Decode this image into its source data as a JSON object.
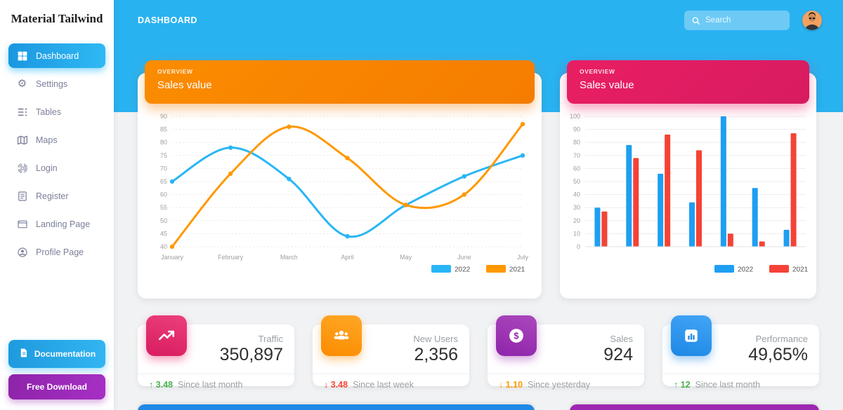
{
  "colors": {
    "topbar_blue": "#29b2f0",
    "active_item_blue": "#2fb9f4",
    "orange_header": "#fb8c00",
    "pink_header": "#e91e63",
    "purple": "#9c27b0",
    "line_blue": "#29b6f6",
    "line_orange": "#ff9800",
    "bar_blue": "#1e9ff2",
    "bar_red": "#f44336",
    "green_delta": "#4caf50",
    "red_delta": "#f44336",
    "orange_delta": "#ff9800",
    "background": "#f1f2f4"
  },
  "sidebar": {
    "brand": "Material Tailwind",
    "items": [
      {
        "label": "Dashboard",
        "icon": "dashboard-icon",
        "active": true
      },
      {
        "label": "Settings",
        "icon": "gear-icon",
        "active": false
      },
      {
        "label": "Tables",
        "icon": "table-list-icon",
        "active": false
      },
      {
        "label": "Maps",
        "icon": "map-icon",
        "active": false
      },
      {
        "label": "Login",
        "icon": "fingerprint-icon",
        "active": false
      },
      {
        "label": "Register",
        "icon": "clipboard-list-icon",
        "active": false
      },
      {
        "label": "Landing Page",
        "icon": "browser-window-icon",
        "active": false
      },
      {
        "label": "Profile Page",
        "icon": "person-circle-icon",
        "active": false
      }
    ],
    "footer_buttons": [
      {
        "label": "Documentation",
        "icon": "document-icon",
        "color": "#29a5e8"
      },
      {
        "label": "Free Download",
        "color": "#9c27b0"
      }
    ]
  },
  "topbar": {
    "title": "DASHBOARD",
    "search_placeholder": "Search"
  },
  "charts": {
    "line": {
      "overline": "OVERVIEW",
      "title": "Sales value"
    },
    "bar": {
      "overline": "OVERVIEW",
      "title": "Sales value"
    }
  },
  "chart_data": [
    {
      "type": "line",
      "title": "Sales value",
      "categories": [
        "January",
        "February",
        "March",
        "April",
        "May",
        "June",
        "July"
      ],
      "series": [
        {
          "name": "2022",
          "color": "#29b6f6",
          "values": [
            65,
            78,
            66,
            44,
            56,
            67,
            75
          ]
        },
        {
          "name": "2021",
          "color": "#ff9800",
          "values": [
            40,
            68,
            86,
            74,
            56,
            60,
            87
          ]
        }
      ],
      "ylim": [
        40,
        90
      ],
      "ytick_step": 5,
      "grid": "dotted-horizontal",
      "legend_position": "bottom-right"
    },
    {
      "type": "bar",
      "title": "Sales value",
      "categories": [
        "",
        "",
        "",
        "",
        "",
        "",
        ""
      ],
      "series": [
        {
          "name": "2022",
          "color": "#1e9ff2",
          "values": [
            30,
            78,
            56,
            34,
            100,
            45,
            13
          ]
        },
        {
          "name": "2021",
          "color": "#f44336",
          "values": [
            27,
            68,
            86,
            74,
            10,
            4,
            87
          ]
        }
      ],
      "ylim": [
        0,
        100
      ],
      "ytick_step": 10,
      "grid": "solid-horizontal",
      "legend_position": "bottom-right"
    }
  ],
  "stats": [
    {
      "label": "Traffic",
      "value": "350,897",
      "icon": "trending-up-icon",
      "icon_color": "#e91e63",
      "delta": "↑ 3.48",
      "delta_color": "#4caf50",
      "period": "Since last month"
    },
    {
      "label": "New Users",
      "value": "2,356",
      "icon": "users-icon",
      "icon_color": "#fb8c00",
      "delta": "↓ 3.48",
      "delta_color": "#f44336",
      "period": "Since last week"
    },
    {
      "label": "Sales",
      "value": "924",
      "icon": "dollar-icon",
      "icon_color": "#9c27b0",
      "delta": "↓ 1.10",
      "delta_color": "#ff9800",
      "period": "Since yesterday"
    },
    {
      "label": "Performance",
      "value": "49,65%",
      "icon": "bar-chart-icon",
      "icon_color": "#1e88e5",
      "delta": "↑ 12",
      "delta_color": "#4caf50",
      "period": "Since last month"
    }
  ],
  "peek_cards": [
    {
      "color": "#1e88e5"
    },
    {
      "color": "#9c27b0"
    }
  ]
}
